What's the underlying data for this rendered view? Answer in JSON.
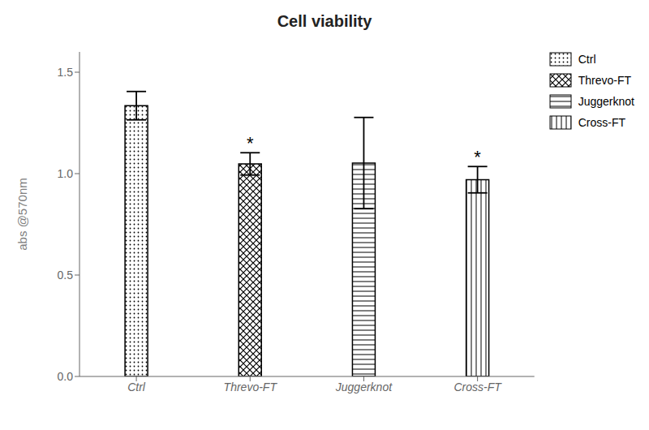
{
  "chart_data": {
    "type": "bar",
    "title": "Cell viability",
    "ylabel": "abs @570nm",
    "categories": [
      "Ctrl",
      "Threvo-FT",
      "Juggerknot",
      "Cross-FT"
    ],
    "values": [
      1.335,
      1.048,
      1.052,
      0.97
    ],
    "errors": [
      0.07,
      0.055,
      0.225,
      0.065
    ],
    "annotations": [
      {
        "x": "Threvo-FT",
        "text": "*"
      },
      {
        "x": "Cross-FT",
        "text": "*"
      }
    ],
    "color": "#000000",
    "ylim": [
      0,
      1.6
    ],
    "yticks": [
      {
        "value": 0,
        "label": "0.0"
      },
      0.5,
      {
        "value": 1,
        "label": "1.0"
      },
      1.5
    ],
    "grid": false,
    "legend": "upper right"
  }
}
